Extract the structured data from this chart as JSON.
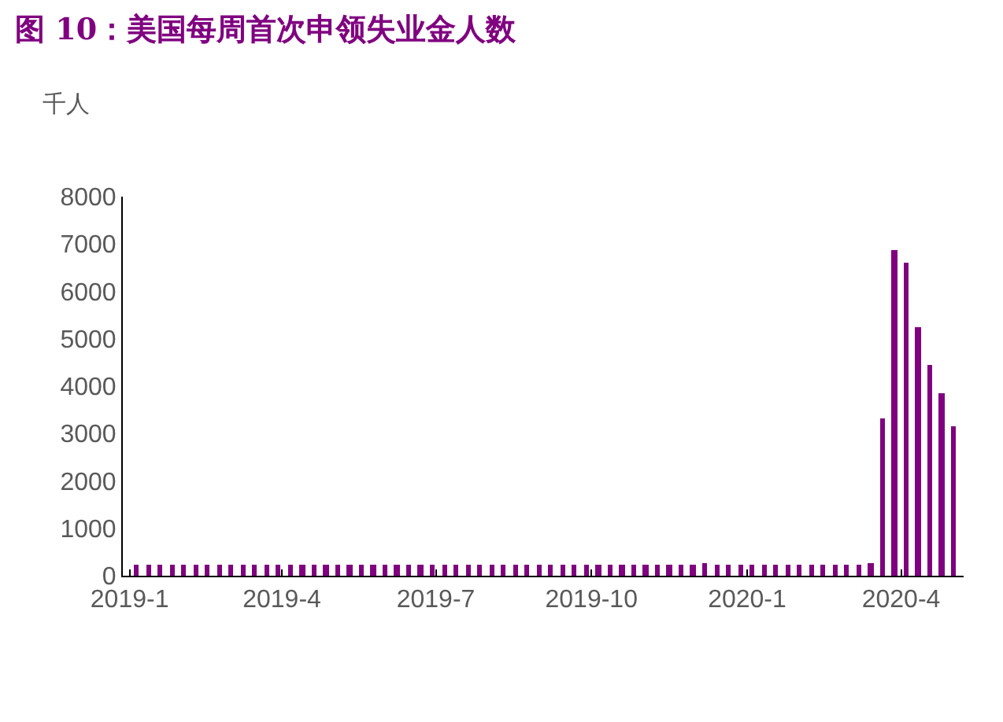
{
  "chart_data": {
    "type": "bar",
    "title": "图 10：美国每周首次申领失业金人数",
    "ylabel": "千人",
    "color": "#800080",
    "x": [
      "2019-01-05",
      "2019-01-12",
      "2019-01-19",
      "2019-01-26",
      "2019-02-02",
      "2019-02-09",
      "2019-02-16",
      "2019-02-23",
      "2019-03-02",
      "2019-03-09",
      "2019-03-16",
      "2019-03-23",
      "2019-03-30",
      "2019-04-06",
      "2019-04-13",
      "2019-04-20",
      "2019-04-27",
      "2019-05-04",
      "2019-05-11",
      "2019-05-18",
      "2019-05-25",
      "2019-06-01",
      "2019-06-08",
      "2019-06-15",
      "2019-06-22",
      "2019-06-29",
      "2019-07-06",
      "2019-07-13",
      "2019-07-20",
      "2019-07-27",
      "2019-08-03",
      "2019-08-10",
      "2019-08-17",
      "2019-08-24",
      "2019-08-31",
      "2019-09-07",
      "2019-09-14",
      "2019-09-21",
      "2019-09-28",
      "2019-10-05",
      "2019-10-12",
      "2019-10-19",
      "2019-10-26",
      "2019-11-02",
      "2019-11-09",
      "2019-11-16",
      "2019-11-23",
      "2019-11-30",
      "2019-12-07",
      "2019-12-14",
      "2019-12-21",
      "2019-12-28",
      "2020-01-04",
      "2020-01-11",
      "2020-01-18",
      "2020-01-25",
      "2020-02-01",
      "2020-02-08",
      "2020-02-15",
      "2020-02-22",
      "2020-02-29",
      "2020-03-07",
      "2020-03-14",
      "2020-03-21",
      "2020-03-28",
      "2020-04-04",
      "2020-04-11",
      "2020-04-18",
      "2020-04-25",
      "2020-05-02"
    ],
    "values": [
      220,
      220,
      240,
      220,
      220,
      220,
      220,
      220,
      220,
      220,
      220,
      220,
      220,
      220,
      220,
      220,
      220,
      220,
      220,
      220,
      220,
      220,
      220,
      220,
      220,
      220,
      220,
      220,
      220,
      220,
      220,
      220,
      220,
      220,
      220,
      220,
      220,
      220,
      220,
      220,
      220,
      220,
      220,
      220,
      220,
      220,
      220,
      220,
      260,
      220,
      220,
      220,
      220,
      220,
      220,
      220,
      220,
      220,
      220,
      220,
      220,
      220,
      280,
      3310,
      6870,
      6620,
      5240,
      4440,
      3850,
      3170
    ],
    "xlim": [
      "2018-12-28",
      "2020-05-08"
    ],
    "xticks": [
      {
        "value": "2019-01-01",
        "label": "2019-1"
      },
      {
        "value": "2019-04-01",
        "label": "2019-4"
      },
      {
        "value": "2019-07-01",
        "label": "2019-7"
      },
      {
        "value": "2019-10-01",
        "label": "2019-10"
      },
      {
        "value": "2020-01-01",
        "label": "2020-1"
      },
      {
        "value": "2020-04-01",
        "label": "2020-4"
      }
    ],
    "ylim": [
      0,
      8000
    ],
    "yticks": [
      0,
      1000,
      2000,
      3000,
      4000,
      5000,
      6000,
      7000,
      8000
    ]
  }
}
